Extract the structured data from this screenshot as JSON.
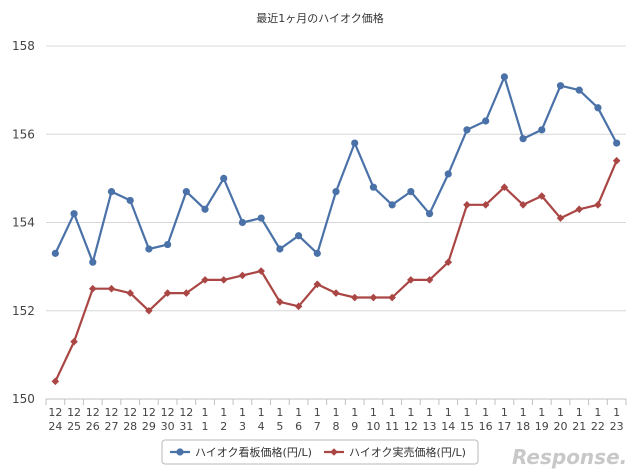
{
  "chart_data": {
    "type": "line",
    "title": "最近1ヶ月のハイオク価格",
    "xlabel": "",
    "ylabel": "",
    "ylim": [
      150,
      158
    ],
    "yticks": [
      150,
      152,
      154,
      156,
      158
    ],
    "grid": "horizontal",
    "legend_position": "bottom",
    "categories": [
      [
        "12",
        "24"
      ],
      [
        "12",
        "25"
      ],
      [
        "12",
        "26"
      ],
      [
        "12",
        "27"
      ],
      [
        "12",
        "28"
      ],
      [
        "12",
        "29"
      ],
      [
        "12",
        "30"
      ],
      [
        "12",
        "31"
      ],
      [
        "1",
        "1"
      ],
      [
        "1",
        "2"
      ],
      [
        "1",
        "3"
      ],
      [
        "1",
        "4"
      ],
      [
        "1",
        "5"
      ],
      [
        "1",
        "6"
      ],
      [
        "1",
        "7"
      ],
      [
        "1",
        "8"
      ],
      [
        "1",
        "9"
      ],
      [
        "1",
        "10"
      ],
      [
        "1",
        "11"
      ],
      [
        "1",
        "12"
      ],
      [
        "1",
        "13"
      ],
      [
        "1",
        "14"
      ],
      [
        "1",
        "15"
      ],
      [
        "1",
        "16"
      ],
      [
        "1",
        "17"
      ],
      [
        "1",
        "18"
      ],
      [
        "1",
        "19"
      ],
      [
        "1",
        "20"
      ],
      [
        "1",
        "21"
      ],
      [
        "1",
        "22"
      ],
      [
        "1",
        "23"
      ]
    ],
    "series": [
      {
        "name": "ハイオク看板価格(円/L)",
        "color": "#4a72a8",
        "marker": "circle",
        "values": [
          153.3,
          154.2,
          153.1,
          154.7,
          154.5,
          153.4,
          153.5,
          154.7,
          154.3,
          155.0,
          154.0,
          154.1,
          153.4,
          153.7,
          153.3,
          154.7,
          155.8,
          154.8,
          154.4,
          154.7,
          154.2,
          155.1,
          156.1,
          156.3,
          157.3,
          155.9,
          156.1,
          157.1,
          157.0,
          156.6,
          155.8
        ]
      },
      {
        "name": "ハイオク実売価格(円/L)",
        "color": "#aa4644",
        "marker": "diamond",
        "values": [
          150.4,
          151.3,
          152.5,
          152.5,
          152.4,
          152.0,
          152.4,
          152.4,
          152.7,
          152.7,
          152.8,
          152.9,
          152.2,
          152.1,
          152.6,
          152.4,
          152.3,
          152.3,
          152.3,
          152.7,
          152.7,
          153.1,
          154.4,
          154.4,
          154.8,
          154.4,
          154.6,
          154.1,
          154.3,
          154.4,
          155.4
        ]
      }
    ]
  },
  "watermark": "Response."
}
